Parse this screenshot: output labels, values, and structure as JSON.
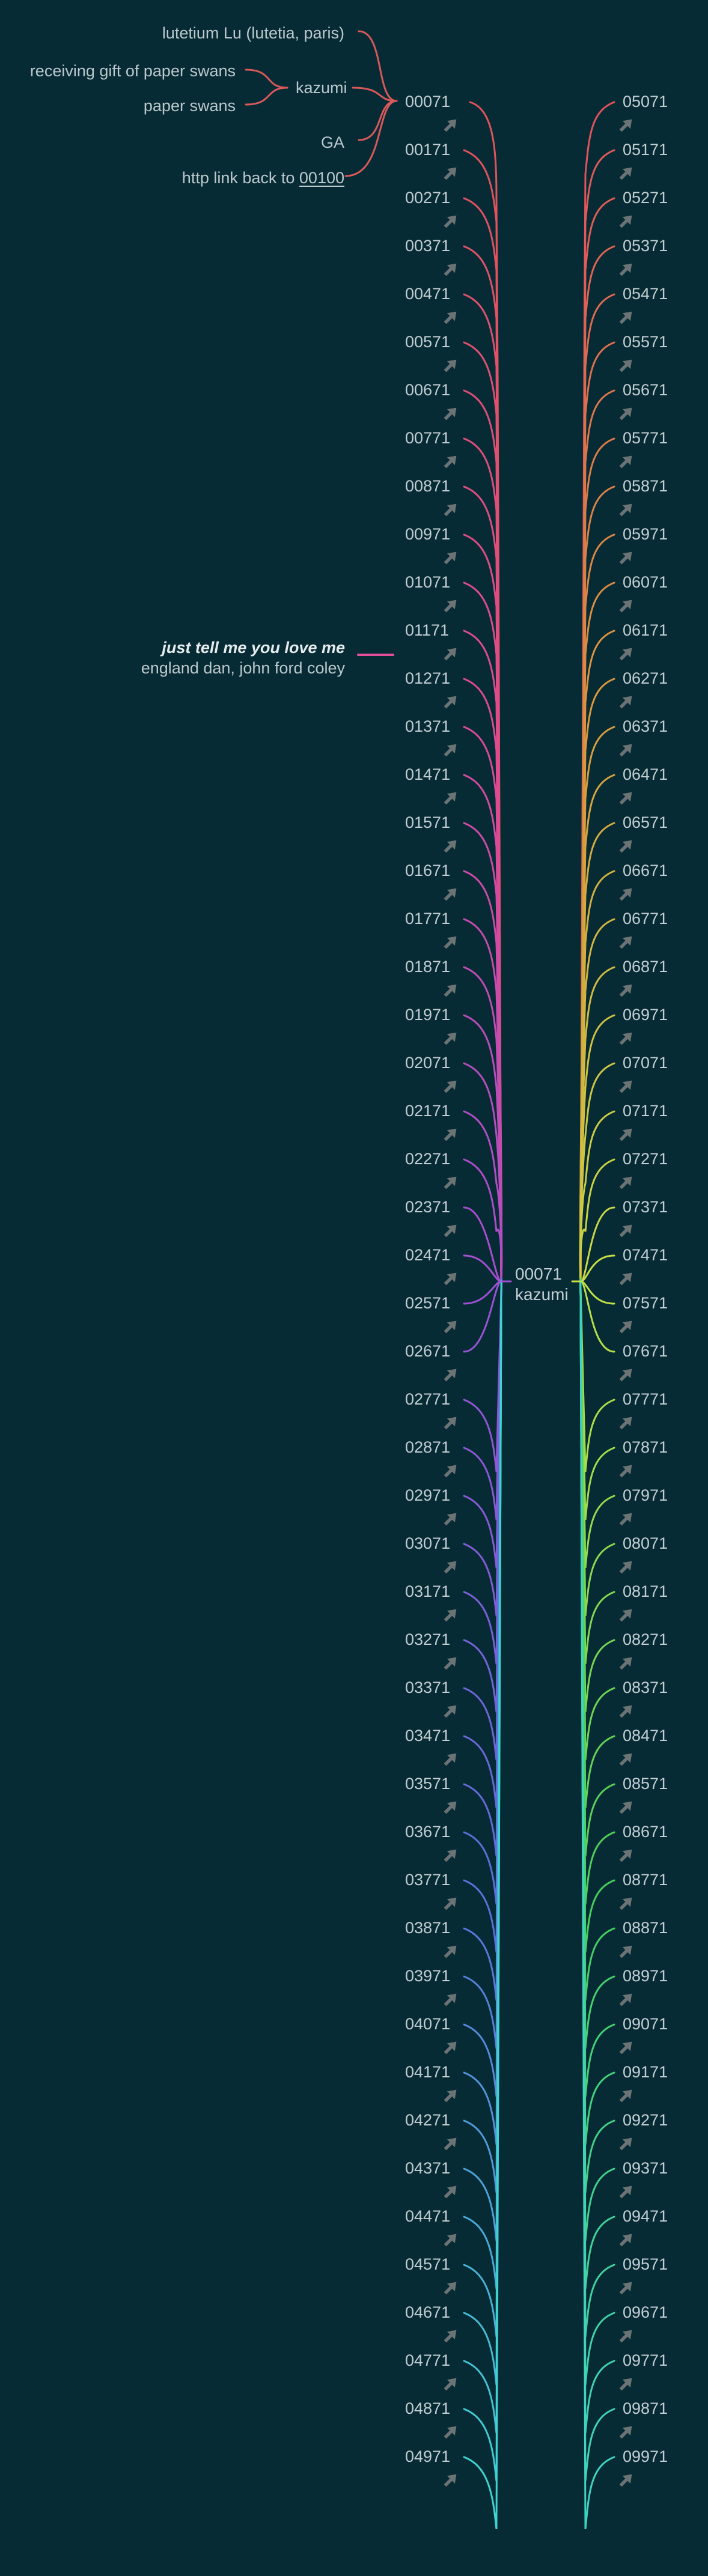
{
  "top_annotations": {
    "lutetium": "lutetium Lu (lutetia, paris)",
    "receiving": "receiving gift of paper swans",
    "paper_swans": "paper swans",
    "kazumi": "kazumi",
    "ga": "GA",
    "link_prefix": "http link back to ",
    "link_target": "00100"
  },
  "song": {
    "title": "just tell me you love me",
    "artist": "england dan, john ford coley"
  },
  "hub": {
    "id": "00071",
    "name": "kazumi"
  },
  "left_nodes": [
    "00071",
    "00171",
    "00271",
    "00371",
    "00471",
    "00571",
    "00671",
    "00771",
    "00871",
    "00971",
    "01071",
    "01171",
    "01271",
    "01371",
    "01471",
    "01571",
    "01671",
    "01771",
    "01871",
    "01971",
    "02071",
    "02171",
    "02271",
    "02371",
    "02471",
    "02571",
    "02671",
    "02771",
    "02871",
    "02971",
    "03071",
    "03171",
    "03271",
    "03371",
    "03471",
    "03571",
    "03671",
    "03771",
    "03871",
    "03971",
    "04071",
    "04171",
    "04271",
    "04371",
    "04471",
    "04571",
    "04671",
    "04771",
    "04871",
    "04971"
  ],
  "right_nodes": [
    "05071",
    "05171",
    "05271",
    "05371",
    "05471",
    "05571",
    "05671",
    "05771",
    "05871",
    "05971",
    "06071",
    "06171",
    "06271",
    "06371",
    "06471",
    "06571",
    "06671",
    "06771",
    "06871",
    "06971",
    "07071",
    "07171",
    "07271",
    "07371",
    "07471",
    "07571",
    "07671",
    "07771",
    "07871",
    "07971",
    "08071",
    "08171",
    "08271",
    "08371",
    "08471",
    "08571",
    "08671",
    "08771",
    "08871",
    "08971",
    "09071",
    "09171",
    "09271",
    "09371",
    "09471",
    "09571",
    "09671",
    "09771",
    "09871",
    "09971"
  ],
  "colors": {
    "background": "#062b35",
    "annotation_brace": "#d9585a",
    "song_connector": "#e44f9c",
    "arrow": "#6b7375",
    "left_gradient": [
      "#e0545a",
      "#de4a96",
      "#a04fd3",
      "#5b6fdc",
      "#3fd3d2"
    ],
    "right_gradient": [
      "#e0545a",
      "#d99a3c",
      "#c6e045",
      "#47d05a",
      "#3fd3c0"
    ]
  },
  "icons": {
    "node_arrow": "arrow-up-right-icon"
  }
}
